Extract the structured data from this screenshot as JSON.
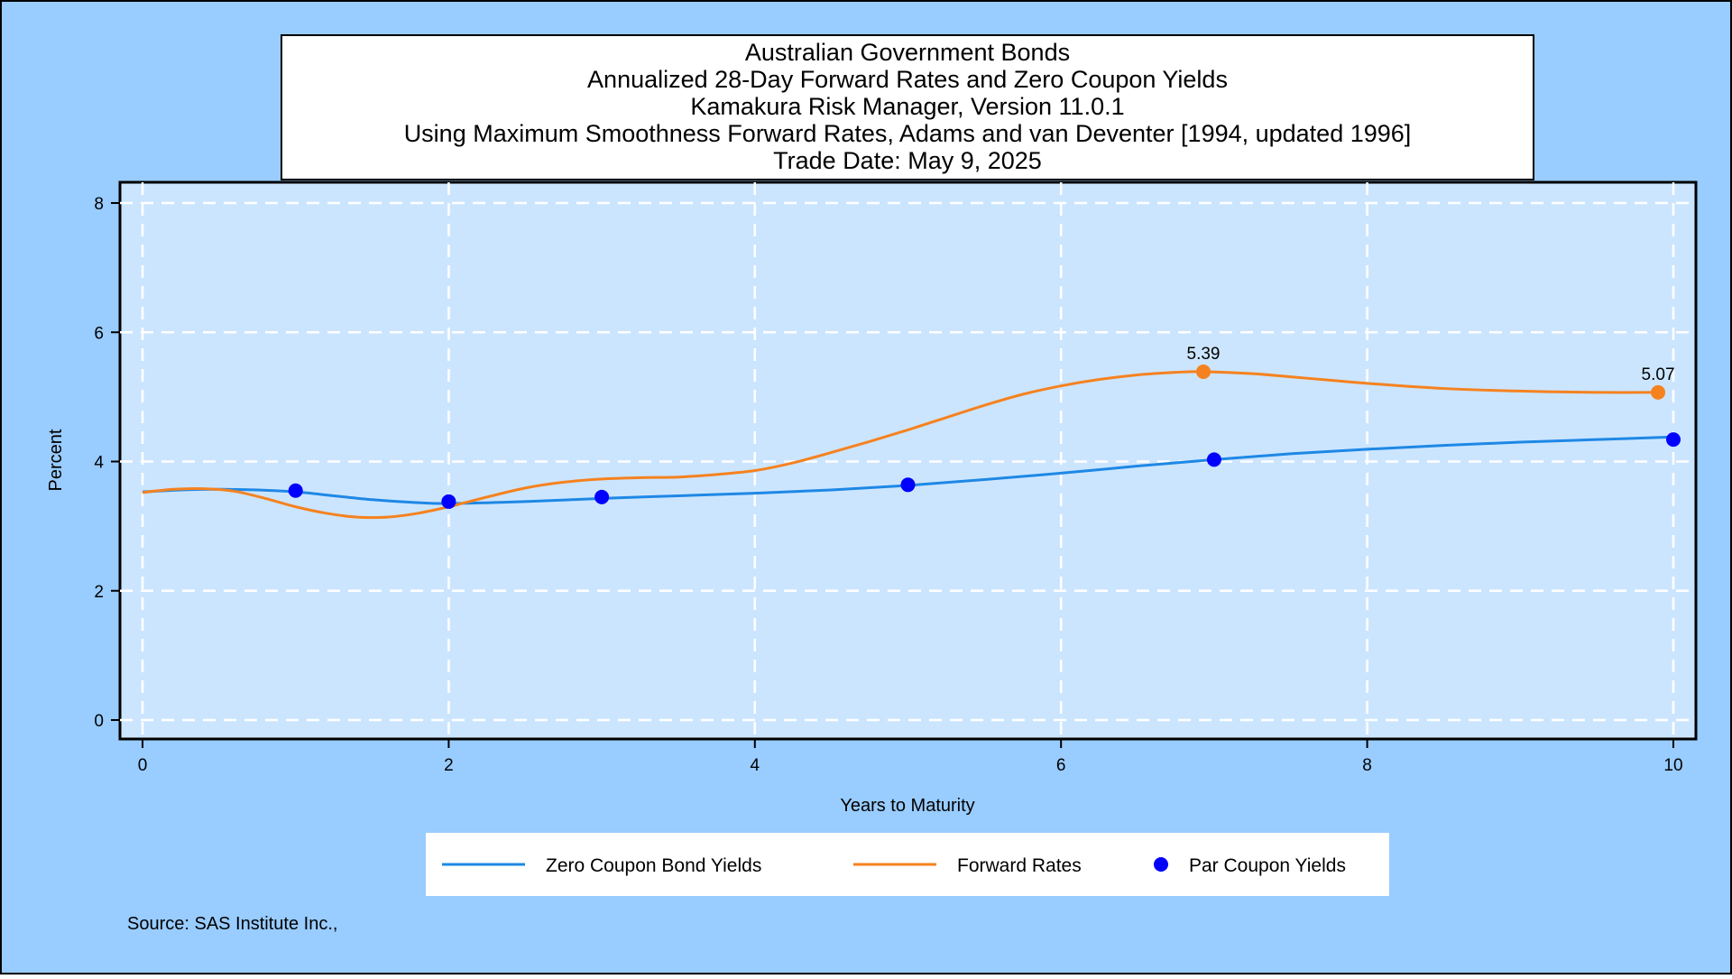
{
  "colors": {
    "page_background": "#99ccff",
    "plot_background": "#cce5ff",
    "zero_coupon": "#1e88e5",
    "forward": "#f5821f",
    "par": "#0000ff",
    "grid": "#ffffff",
    "border": "#000000"
  },
  "title_lines": [
    "Australian Government Bonds",
    "Annualized 28-Day Forward Rates and Zero Coupon Yields",
    "Kamakura Risk Manager, Version 11.0.1",
    "Using Maximum Smoothness Forward Rates, Adams and van Deventer [1994, updated 1996]",
    "Trade Date: May 9, 2025"
  ],
  "source": "Source: SAS Institute Inc.,",
  "chart_data": {
    "type": "line",
    "xlabel": "Years to Maturity",
    "ylabel": "Percent",
    "xlim": [
      0,
      10
    ],
    "ylim": [
      0,
      8
    ],
    "xticks": [
      0,
      2,
      4,
      6,
      8,
      10
    ],
    "yticks": [
      0,
      2,
      4,
      6,
      8
    ],
    "grid": true,
    "grid_style": "dashed",
    "legend_position": "bottom",
    "series": [
      {
        "name": "Zero Coupon Bond Yields",
        "kind": "line",
        "color": "#1e88e5",
        "x": [
          0,
          0.25,
          0.5,
          0.75,
          1,
          1.25,
          1.5,
          1.75,
          2,
          2.5,
          3,
          3.5,
          4,
          4.5,
          5,
          5.5,
          6,
          6.5,
          7,
          7.5,
          8,
          8.5,
          9,
          9.5,
          10
        ],
        "y": [
          3.53,
          3.56,
          3.57,
          3.56,
          3.53,
          3.47,
          3.41,
          3.37,
          3.35,
          3.38,
          3.43,
          3.47,
          3.51,
          3.56,
          3.63,
          3.72,
          3.82,
          3.93,
          4.03,
          4.12,
          4.19,
          4.25,
          4.3,
          4.34,
          4.38
        ]
      },
      {
        "name": "Forward Rates",
        "kind": "line",
        "color": "#f5821f",
        "x": [
          0,
          0.2,
          0.4,
          0.6,
          0.8,
          1,
          1.2,
          1.4,
          1.6,
          1.8,
          2,
          2.25,
          2.5,
          2.75,
          3,
          3.25,
          3.5,
          3.75,
          4,
          4.25,
          4.5,
          4.75,
          5,
          5.25,
          5.5,
          5.75,
          6,
          6.25,
          6.5,
          6.75,
          6.93,
          7.25,
          7.5,
          7.75,
          8,
          8.5,
          9,
          9.5,
          9.9
        ],
        "y": [
          3.52,
          3.57,
          3.58,
          3.54,
          3.43,
          3.3,
          3.2,
          3.14,
          3.14,
          3.2,
          3.3,
          3.45,
          3.59,
          3.68,
          3.73,
          3.75,
          3.76,
          3.8,
          3.86,
          3.98,
          4.14,
          4.31,
          4.49,
          4.68,
          4.87,
          5.04,
          5.17,
          5.27,
          5.34,
          5.38,
          5.39,
          5.36,
          5.31,
          5.26,
          5.21,
          5.13,
          5.09,
          5.07,
          5.07
        ],
        "markers": [
          {
            "x": 6.93,
            "y": 5.39,
            "label": "5.39"
          },
          {
            "x": 9.9,
            "y": 5.07,
            "label": "5.07"
          }
        ]
      },
      {
        "name": "Par Coupon Yields",
        "kind": "scatter",
        "color": "#0000ff",
        "x": [
          1,
          2,
          3,
          5,
          7,
          10
        ],
        "y": [
          3.55,
          3.38,
          3.45,
          3.64,
          4.03,
          4.34
        ]
      }
    ]
  }
}
